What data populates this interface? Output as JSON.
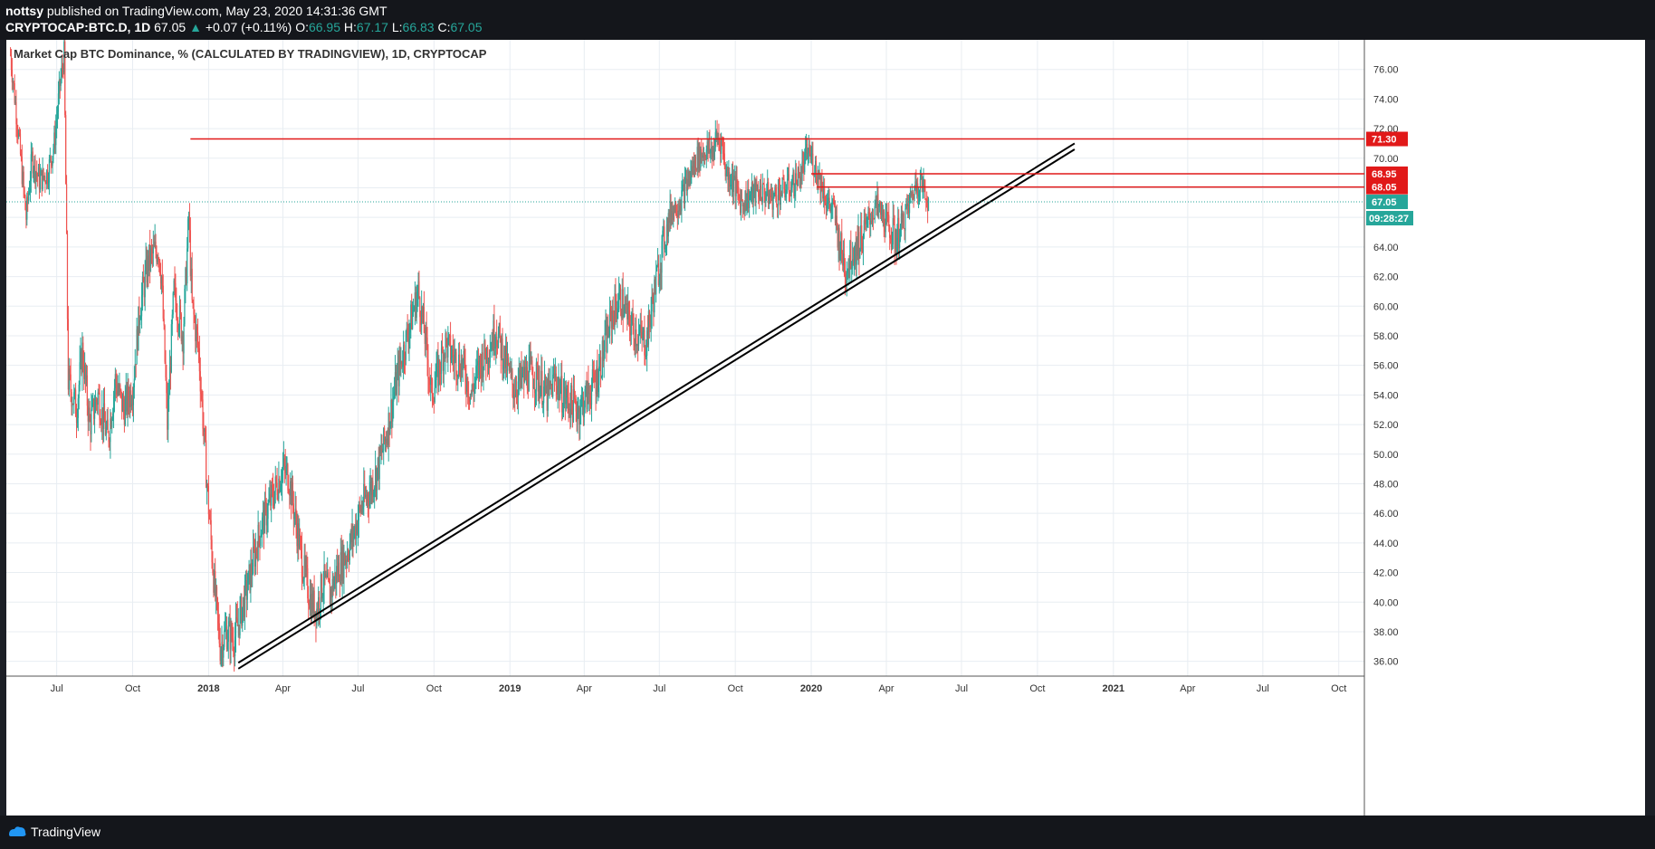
{
  "header": {
    "user": "nottsy",
    "published": "published on TradingView.com, May 23, 2020 14:31:36 GMT",
    "symbol": "CRYPTOCAP:BTC.D, 1D",
    "last": "67.05",
    "arrow": "▲",
    "change": "+0.07 (+0.11%)",
    "o_label": "O:",
    "o_value": "66.95",
    "h_label": "H:",
    "h_value": "67.17",
    "l_label": "L:",
    "l_value": "66.83",
    "c_label": "C:",
    "c_value": "67.05"
  },
  "footer": {
    "brand": "TradingView"
  },
  "colors": {
    "up": "#26a69a",
    "down": "#ef5350",
    "level": "#e11919",
    "trend": "#000000",
    "grid": "#e8edf2"
  },
  "chart_data": {
    "type": "candlestick",
    "title": "Market Cap BTC Dominance, % (CALCULATED BY TRADINGVIEW), 1D, CRYPTOCAP",
    "ylim": [
      35,
      78
    ],
    "x_range": [
      "2017-05-01",
      "2021-11-01"
    ],
    "y_ticks": [
      "36.00",
      "38.00",
      "40.00",
      "42.00",
      "44.00",
      "46.00",
      "48.00",
      "50.00",
      "52.00",
      "54.00",
      "56.00",
      "58.00",
      "60.00",
      "62.00",
      "64.00",
      "66.00",
      "68.00",
      "70.00",
      "72.00",
      "74.00",
      "76.00"
    ],
    "x_ticks": [
      {
        "date": "2017-07-01",
        "label": "Jul",
        "bold": false
      },
      {
        "date": "2017-10-01",
        "label": "Oct",
        "bold": false
      },
      {
        "date": "2018-01-01",
        "label": "2018",
        "bold": true
      },
      {
        "date": "2018-04-01",
        "label": "Apr",
        "bold": false
      },
      {
        "date": "2018-07-01",
        "label": "Jul",
        "bold": false
      },
      {
        "date": "2018-10-01",
        "label": "Oct",
        "bold": false
      },
      {
        "date": "2019-01-01",
        "label": "2019",
        "bold": true
      },
      {
        "date": "2019-04-01",
        "label": "Apr",
        "bold": false
      },
      {
        "date": "2019-07-01",
        "label": "Jul",
        "bold": false
      },
      {
        "date": "2019-10-01",
        "label": "Oct",
        "bold": false
      },
      {
        "date": "2020-01-01",
        "label": "2020",
        "bold": true
      },
      {
        "date": "2020-04-01",
        "label": "Apr",
        "bold": false
      },
      {
        "date": "2020-07-01",
        "label": "Jul",
        "bold": false
      },
      {
        "date": "2020-10-01",
        "label": "Oct",
        "bold": false
      },
      {
        "date": "2021-01-01",
        "label": "2021",
        "bold": true
      },
      {
        "date": "2021-04-01",
        "label": "Apr",
        "bold": false
      },
      {
        "date": "2021-07-01",
        "label": "Jul",
        "bold": false
      },
      {
        "date": "2021-10-01",
        "label": "Oct",
        "bold": false
      }
    ],
    "price_path": [
      [
        "2017-05-06",
        77.0
      ],
      [
        "2017-05-15",
        72.0
      ],
      [
        "2017-05-25",
        66.0
      ],
      [
        "2017-06-01",
        70.0
      ],
      [
        "2017-06-10",
        68.5
      ],
      [
        "2017-06-20",
        69.0
      ],
      [
        "2017-06-28",
        71.0
      ],
      [
        "2017-07-05",
        75.0
      ],
      [
        "2017-07-10",
        77.0
      ],
      [
        "2017-07-15",
        55.0
      ],
      [
        "2017-07-25",
        53.0
      ],
      [
        "2017-08-01",
        57.0
      ],
      [
        "2017-08-10",
        52.0
      ],
      [
        "2017-08-20",
        54.0
      ],
      [
        "2017-09-01",
        51.0
      ],
      [
        "2017-09-10",
        55.0
      ],
      [
        "2017-09-20",
        53.0
      ],
      [
        "2017-10-01",
        54.5
      ],
      [
        "2017-10-10",
        60.0
      ],
      [
        "2017-10-20",
        63.0
      ],
      [
        "2017-11-01",
        64.0
      ],
      [
        "2017-11-05",
        62.0
      ],
      [
        "2017-11-12",
        52.0
      ],
      [
        "2017-11-20",
        61.0
      ],
      [
        "2017-12-01",
        58.0
      ],
      [
        "2017-12-08",
        66.0
      ],
      [
        "2017-12-12",
        60.0
      ],
      [
        "2017-12-20",
        57.0
      ],
      [
        "2017-12-30",
        48.0
      ],
      [
        "2018-01-08",
        41.0
      ],
      [
        "2018-01-15",
        37.0
      ],
      [
        "2018-01-22",
        38.0
      ],
      [
        "2018-02-01",
        37.5
      ],
      [
        "2018-02-08",
        39.0
      ],
      [
        "2018-02-15",
        40.5
      ],
      [
        "2018-02-25",
        43.0
      ],
      [
        "2018-03-05",
        45.0
      ],
      [
        "2018-03-15",
        46.5
      ],
      [
        "2018-03-25",
        48.0
      ],
      [
        "2018-04-01",
        49.0
      ],
      [
        "2018-04-08",
        48.5
      ],
      [
        "2018-04-15",
        46.0
      ],
      [
        "2018-04-25",
        42.5
      ],
      [
        "2018-05-05",
        40.0
      ],
      [
        "2018-05-12",
        39.5
      ],
      [
        "2018-05-20",
        41.5
      ],
      [
        "2018-05-28",
        40.5
      ],
      [
        "2018-06-05",
        42.0
      ],
      [
        "2018-06-15",
        43.0
      ],
      [
        "2018-06-25",
        44.5
      ],
      [
        "2018-07-05",
        46.5
      ],
      [
        "2018-07-15",
        47.5
      ],
      [
        "2018-07-25",
        49.0
      ],
      [
        "2018-08-05",
        51.5
      ],
      [
        "2018-08-15",
        54.5
      ],
      [
        "2018-08-25",
        57.0
      ],
      [
        "2018-09-05",
        59.5
      ],
      [
        "2018-09-12",
        61.0
      ],
      [
        "2018-09-20",
        58.0
      ],
      [
        "2018-09-28",
        54.0
      ],
      [
        "2018-10-06",
        55.5
      ],
      [
        "2018-10-15",
        57.5
      ],
      [
        "2018-10-25",
        56.5
      ],
      [
        "2018-11-05",
        56.0
      ],
      [
        "2018-11-15",
        54.0
      ],
      [
        "2018-11-25",
        56.0
      ],
      [
        "2018-12-05",
        57.0
      ],
      [
        "2018-12-15",
        58.5
      ],
      [
        "2018-12-25",
        56.5
      ],
      [
        "2019-01-05",
        54.5
      ],
      [
        "2019-01-15",
        55.0
      ],
      [
        "2019-01-25",
        55.5
      ],
      [
        "2019-02-05",
        55.0
      ],
      [
        "2019-02-15",
        53.8
      ],
      [
        "2019-02-25",
        55.2
      ],
      [
        "2019-03-05",
        54.0
      ],
      [
        "2019-03-15",
        53.5
      ],
      [
        "2019-03-25",
        53.0
      ],
      [
        "2019-04-05",
        54.0
      ],
      [
        "2019-04-15",
        55.0
      ],
      [
        "2019-04-25",
        57.0
      ],
      [
        "2019-05-05",
        59.5
      ],
      [
        "2019-05-15",
        60.5
      ],
      [
        "2019-05-25",
        59.0
      ],
      [
        "2019-06-05",
        58.0
      ],
      [
        "2019-06-15",
        57.5
      ],
      [
        "2019-06-25",
        61.0
      ],
      [
        "2019-07-05",
        64.0
      ],
      [
        "2019-07-15",
        66.5
      ],
      [
        "2019-07-25",
        67.0
      ],
      [
        "2019-08-05",
        68.5
      ],
      [
        "2019-08-15",
        70.0
      ],
      [
        "2019-08-25",
        70.5
      ],
      [
        "2019-09-05",
        70.5
      ],
      [
        "2019-09-08",
        71.5
      ],
      [
        "2019-09-15",
        71.0
      ],
      [
        "2019-09-20",
        69.0
      ],
      [
        "2019-09-28",
        68.5
      ],
      [
        "2019-10-08",
        67.0
      ],
      [
        "2019-10-20",
        67.5
      ],
      [
        "2019-11-01",
        67.8
      ],
      [
        "2019-11-15",
        67.3
      ],
      [
        "2019-12-01",
        68.0
      ],
      [
        "2019-12-10",
        68.2
      ],
      [
        "2019-12-20",
        69.0
      ],
      [
        "2019-12-28",
        70.5
      ],
      [
        "2020-01-05",
        69.5
      ],
      [
        "2020-01-12",
        68.5
      ],
      [
        "2020-01-20",
        67.0
      ],
      [
        "2020-01-28",
        66.5
      ],
      [
        "2020-02-05",
        64.0
      ],
      [
        "2020-02-12",
        62.5
      ],
      [
        "2020-02-18",
        63.5
      ],
      [
        "2020-02-25",
        64.0
      ],
      [
        "2020-03-05",
        65.0
      ],
      [
        "2020-03-12",
        66.0
      ],
      [
        "2020-03-20",
        66.8
      ],
      [
        "2020-03-28",
        66.0
      ],
      [
        "2020-04-05",
        65.2
      ],
      [
        "2020-04-12",
        64.5
      ],
      [
        "2020-04-20",
        65.5
      ],
      [
        "2020-04-28",
        66.8
      ],
      [
        "2020-05-05",
        68.0
      ],
      [
        "2020-05-12",
        68.5
      ],
      [
        "2020-05-18",
        67.6
      ],
      [
        "2020-05-23",
        67.05
      ]
    ],
    "horizontal_levels": [
      {
        "value": 71.3,
        "label": "71.30",
        "start": "2017-12-10"
      },
      {
        "value": 68.95,
        "label": "68.95",
        "start": "2020-01-01"
      },
      {
        "value": 68.05,
        "label": "68.05",
        "start": "2020-01-08"
      }
    ],
    "last_price": {
      "value": 67.05,
      "label": "67.05",
      "countdown": "09:28:27"
    },
    "trendlines": [
      {
        "x1": "2018-02-06",
        "y1": 35.9,
        "x2": "2020-11-15",
        "y2": 71.0
      },
      {
        "x1": "2018-02-06",
        "y1": 35.5,
        "x2": "2020-11-15",
        "y2": 70.6
      }
    ]
  }
}
